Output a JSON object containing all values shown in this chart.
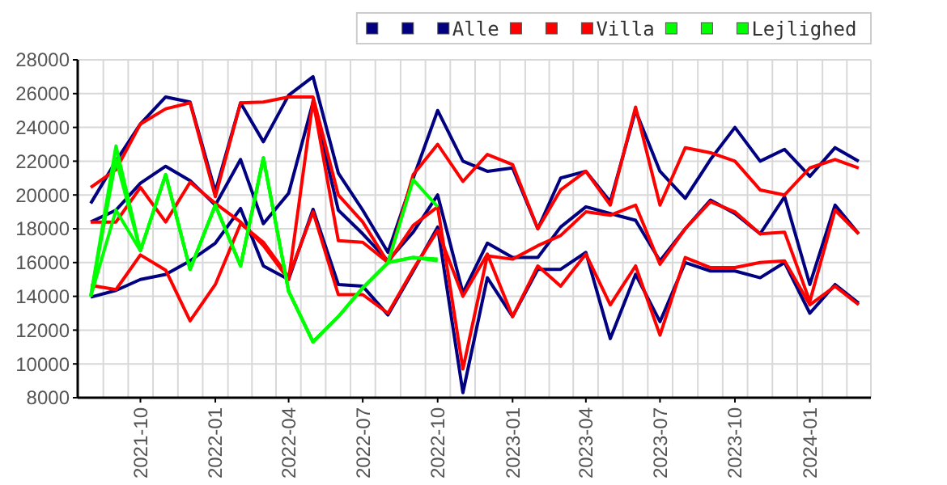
{
  "chart_data": {
    "type": "line",
    "x": [
      "2021-08",
      "2021-09",
      "2021-10",
      "2021-11",
      "2021-12",
      "2022-01",
      "2022-02",
      "2022-03",
      "2022-04",
      "2022-05",
      "2022-06",
      "2022-07",
      "2022-08",
      "2022-09",
      "2022-10",
      "2022-11",
      "2022-12",
      "2023-01",
      "2023-02",
      "2023-03",
      "2023-04",
      "2023-05",
      "2023-06",
      "2023-07",
      "2023-08",
      "2023-09",
      "2023-10",
      "2023-11",
      "2023-12",
      "2024-01",
      "2024-02",
      "2024-03"
    ],
    "series": [
      {
        "color": "#000080",
        "values": [
          19500,
          22000,
          24200,
          25800,
          25500,
          20200,
          25450,
          23150,
          25900,
          27000,
          21300,
          19100,
          16600,
          21000,
          25000,
          22000,
          21400,
          21600,
          18000,
          21000,
          21400,
          19600,
          25000,
          21400,
          19800,
          22100,
          24000,
          22000,
          22700,
          21100,
          22800,
          22000
        ]
      },
      {
        "color": "#000080",
        "values": [
          18400,
          19100,
          20700,
          21700,
          20850,
          19400,
          22100,
          18300,
          20100,
          25500,
          19100,
          17700,
          16100,
          17800,
          20000,
          14200,
          17150,
          16300,
          16300,
          18100,
          19300,
          18900,
          18500,
          16100,
          18000,
          19700,
          18900,
          17700,
          19900,
          14700,
          19400,
          17700
        ]
      },
      {
        "name": "Alle",
        "color": "#000080",
        "values": [
          13950,
          14350,
          15000,
          15300,
          16100,
          17150,
          19200,
          15800,
          15000,
          19150,
          14700,
          14600,
          12900,
          15500,
          18100,
          8300,
          15100,
          12800,
          15600,
          15600,
          16600,
          11500,
          15300,
          12500,
          16000,
          15500,
          15500,
          15100,
          16000,
          13000,
          14700,
          13600
        ]
      },
      {
        "color": "#ff0000",
        "values": [
          20450,
          21500,
          24200,
          25100,
          25450,
          19900,
          25450,
          25500,
          25800,
          25800,
          20000,
          18400,
          16000,
          21200,
          23000,
          20800,
          22400,
          21800,
          18000,
          20300,
          21400,
          19400,
          25200,
          19400,
          22800,
          22500,
          22000,
          20300,
          20000,
          21600,
          22100,
          21600
        ]
      },
      {
        "color": "#ff0000",
        "values": [
          18400,
          18400,
          20450,
          18400,
          20750,
          19500,
          18400,
          17000,
          15000,
          25600,
          17300,
          17200,
          16000,
          18200,
          19300,
          9700,
          16400,
          16200,
          17000,
          17600,
          19000,
          18800,
          19400,
          15900,
          18000,
          19600,
          19000,
          17700,
          17800,
          13700,
          19100,
          17700
        ]
      },
      {
        "name": "Villa",
        "color": "#ff0000",
        "values": [
          14650,
          14400,
          16450,
          15550,
          12550,
          14700,
          18300,
          17200,
          15150,
          19000,
          14100,
          14100,
          13000,
          15600,
          17900,
          14000,
          16500,
          12800,
          15800,
          14600,
          16500,
          13500,
          15800,
          11700,
          16300,
          15700,
          15700,
          16000,
          16100,
          13500,
          14600,
          13500
        ]
      },
      {
        "color": "#00ff00",
        "values": [
          14000,
          22900,
          16700,
          21200,
          15600,
          19400,
          15800,
          22200,
          14300,
          11300,
          12800,
          14500,
          16000,
          20900,
          19300,
          null,
          null,
          null,
          null,
          null,
          null,
          null,
          null,
          null,
          null,
          null,
          null,
          null,
          null,
          null,
          null,
          null
        ]
      },
      {
        "color": "#00ff00",
        "values": [
          14000,
          19100,
          16700,
          21200,
          15600,
          19400,
          15800,
          22200,
          14300,
          11300,
          12800,
          14500,
          16000,
          16300,
          16200,
          null,
          null,
          null,
          null,
          null,
          null,
          null,
          null,
          null,
          null,
          null,
          null,
          null,
          null,
          null,
          null,
          null
        ]
      },
      {
        "name": "Lejlighed",
        "color": "#00ff00",
        "values": [
          14000,
          22100,
          16700,
          21200,
          15600,
          19400,
          15800,
          22200,
          14300,
          11300,
          12800,
          14500,
          16000,
          16300,
          16100,
          null,
          null,
          null,
          null,
          null,
          null,
          null,
          null,
          null,
          null,
          null,
          null,
          null,
          null,
          null,
          null,
          null
        ]
      }
    ],
    "xlim": [
      "2021-07-16",
      "2024-03-16"
    ],
    "xticks": [
      "2021-10",
      "2022-01",
      "2022-04",
      "2022-07",
      "2022-10",
      "2023-01",
      "2023-04",
      "2023-07",
      "2023-10",
      "2024-01"
    ],
    "ylim": [
      8000,
      28000
    ],
    "yticks": [
      8000,
      10000,
      12000,
      14000,
      16000,
      18000,
      20000,
      22000,
      24000,
      26000,
      28000
    ],
    "grid": true,
    "legend": "top right",
    "marker": "none",
    "line_style": "solid"
  }
}
